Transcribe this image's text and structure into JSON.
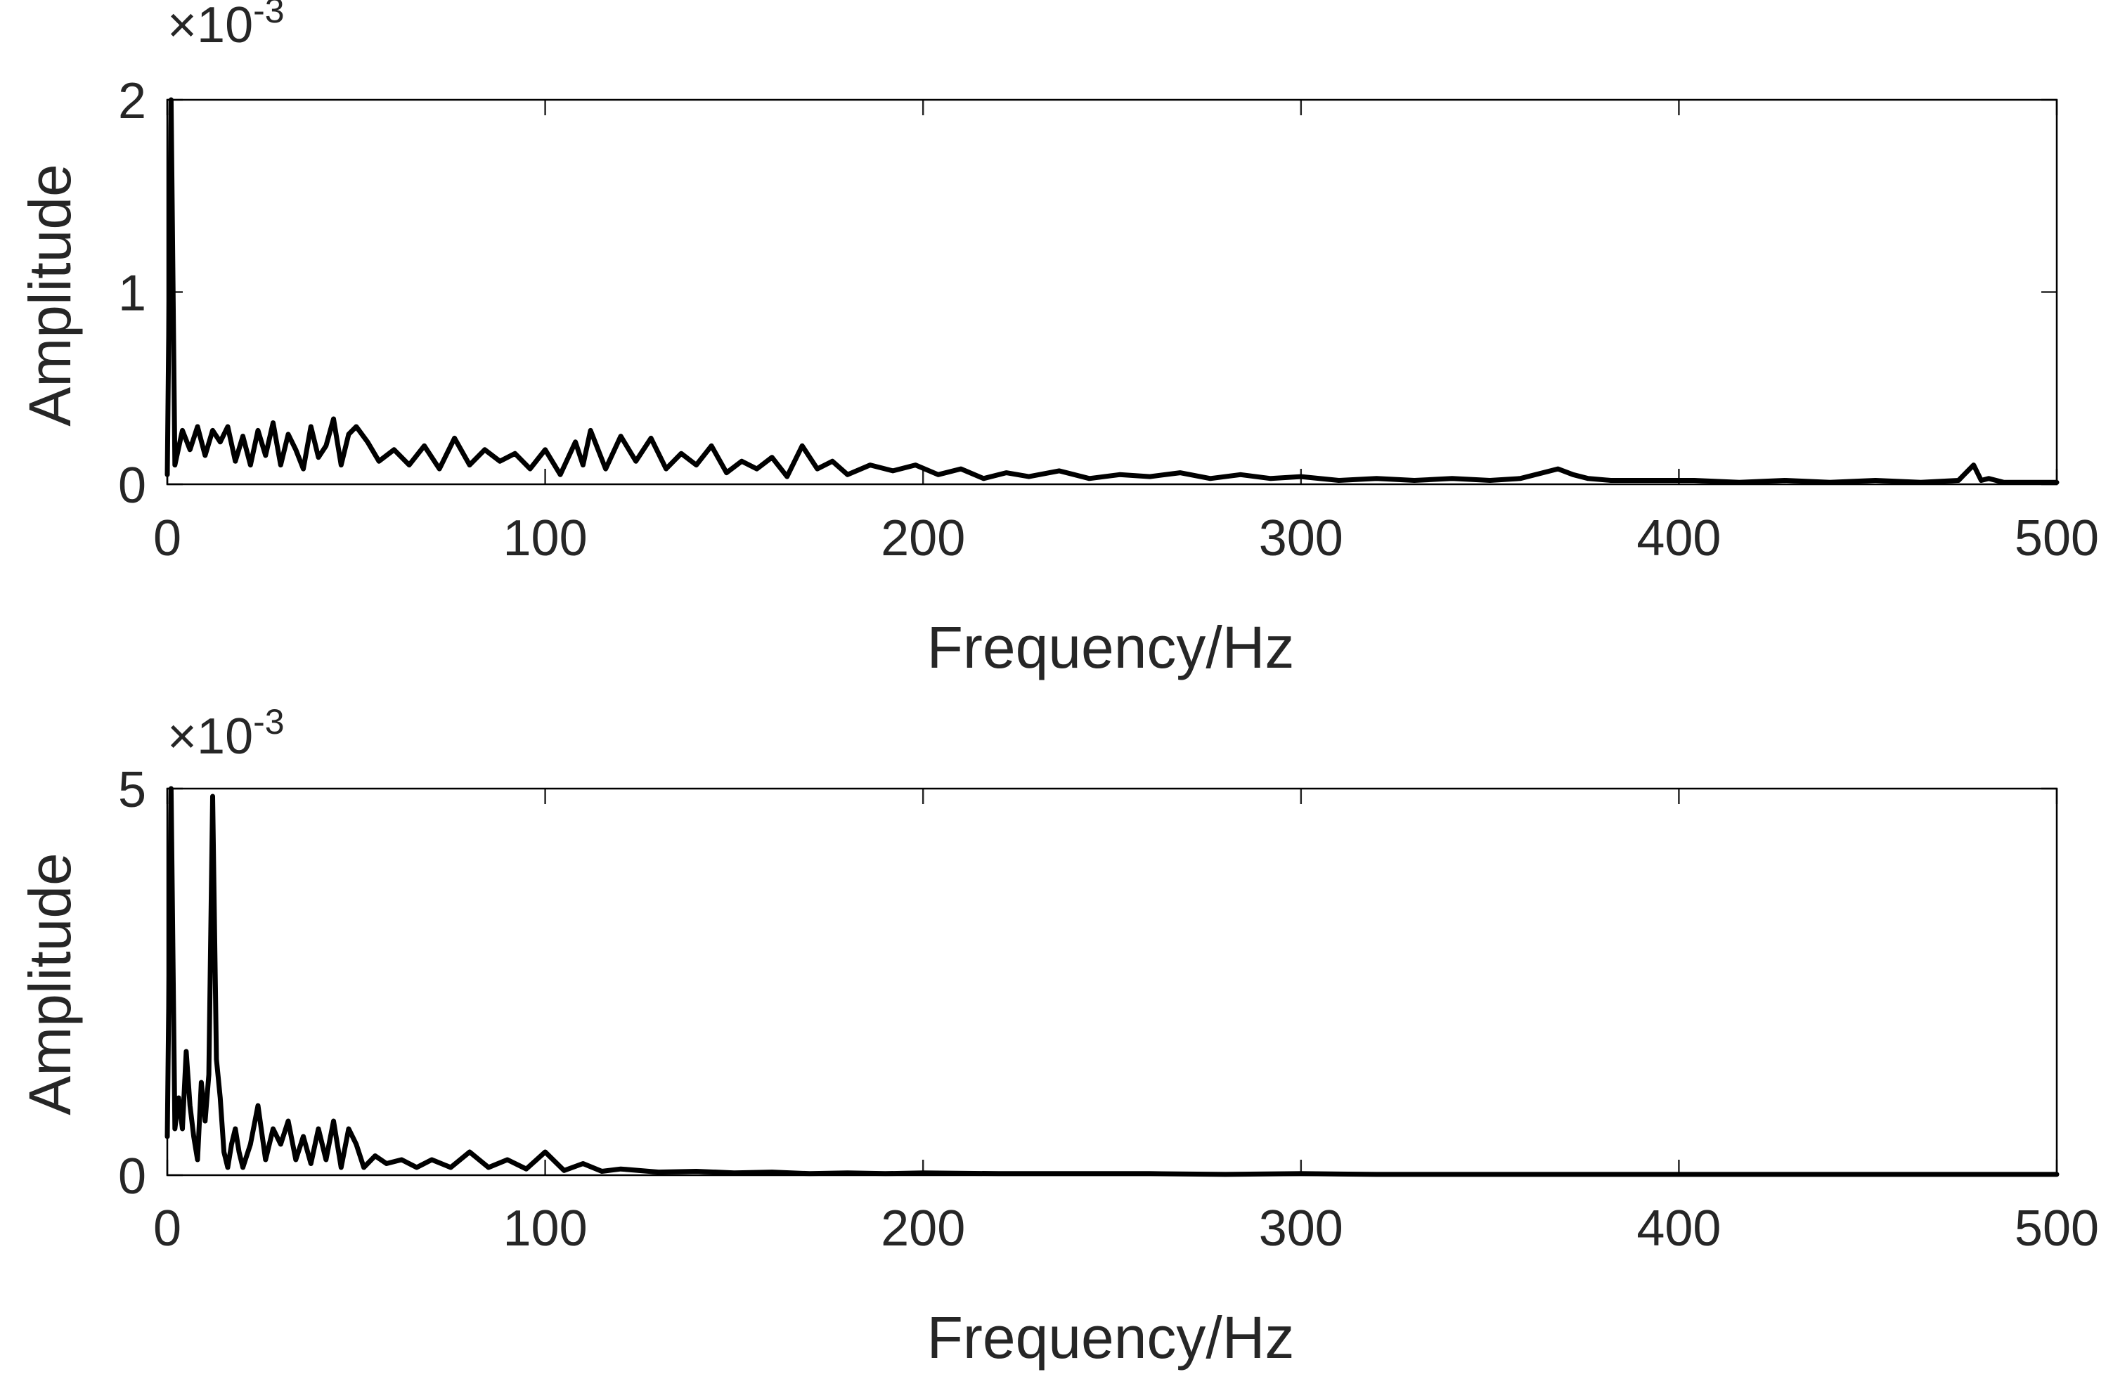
{
  "colors": {
    "line": "#000000",
    "axis": "#262626",
    "background": "#ffffff"
  },
  "chart_data": [
    {
      "type": "line",
      "title": "",
      "xlabel": "Frequency/Hz",
      "ylabel": "Amplitude",
      "y_exponent": "×10^-3",
      "y_exponent_base": "×10",
      "y_exponent_power": "-3",
      "xlim": [
        0,
        500
      ],
      "ylim": [
        0,
        2
      ],
      "xticks": [
        0,
        100,
        200,
        300,
        400,
        500
      ],
      "xtick_labels": [
        "0",
        "100",
        "200",
        "300",
        "400",
        "500"
      ],
      "yticks": [
        0,
        1,
        2
      ],
      "ytick_labels": [
        "0",
        "1",
        "2"
      ],
      "grid": false,
      "series": [
        {
          "x": [
            0,
            1,
            2,
            4,
            6,
            8,
            10,
            12,
            14,
            16,
            18,
            20,
            22,
            24,
            26,
            28,
            30,
            32,
            34,
            36,
            38,
            40,
            42,
            44,
            46,
            48,
            50,
            53,
            56,
            60,
            64,
            68,
            72,
            76,
            80,
            84,
            88,
            92,
            96,
            100,
            104,
            108,
            110,
            112,
            116,
            120,
            124,
            128,
            132,
            136,
            140,
            144,
            148,
            152,
            156,
            160,
            164,
            168,
            172,
            176,
            180,
            186,
            192,
            198,
            204,
            210,
            216,
            222,
            228,
            236,
            244,
            252,
            260,
            268,
            276,
            284,
            292,
            300,
            310,
            320,
            330,
            340,
            350,
            358,
            364,
            368,
            372,
            376,
            382,
            392,
            404,
            416,
            428,
            440,
            452,
            464,
            474,
            478,
            480,
            482,
            486,
            492,
            500
          ],
          "y": [
            0.05,
            2.0,
            0.1,
            0.28,
            0.18,
            0.3,
            0.15,
            0.28,
            0.22,
            0.3,
            0.12,
            0.25,
            0.1,
            0.28,
            0.15,
            0.32,
            0.1,
            0.26,
            0.18,
            0.08,
            0.3,
            0.14,
            0.2,
            0.34,
            0.1,
            0.26,
            0.3,
            0.22,
            0.12,
            0.18,
            0.1,
            0.2,
            0.08,
            0.24,
            0.1,
            0.18,
            0.12,
            0.16,
            0.08,
            0.18,
            0.05,
            0.22,
            0.1,
            0.28,
            0.08,
            0.25,
            0.12,
            0.24,
            0.08,
            0.16,
            0.1,
            0.2,
            0.06,
            0.12,
            0.08,
            0.14,
            0.04,
            0.2,
            0.08,
            0.12,
            0.05,
            0.1,
            0.07,
            0.1,
            0.05,
            0.08,
            0.03,
            0.06,
            0.04,
            0.07,
            0.03,
            0.05,
            0.04,
            0.06,
            0.03,
            0.05,
            0.03,
            0.04,
            0.02,
            0.03,
            0.02,
            0.03,
            0.02,
            0.03,
            0.06,
            0.08,
            0.05,
            0.03,
            0.02,
            0.02,
            0.02,
            0.01,
            0.02,
            0.01,
            0.02,
            0.01,
            0.02,
            0.1,
            0.02,
            0.03,
            0.01,
            0.01,
            0.01
          ]
        }
      ]
    },
    {
      "type": "line",
      "title": "",
      "xlabel": "Frequency/Hz",
      "ylabel": "Amplitude",
      "y_exponent": "×10^-3",
      "y_exponent_base": "×10",
      "y_exponent_power": "-3",
      "xlim": [
        0,
        500
      ],
      "ylim": [
        0,
        5
      ],
      "xticks": [
        0,
        100,
        200,
        300,
        400,
        500
      ],
      "xtick_labels": [
        "0",
        "100",
        "200",
        "300",
        "400",
        "500"
      ],
      "yticks": [
        0,
        5
      ],
      "ytick_labels": [
        "0",
        "5"
      ],
      "grid": false,
      "series": [
        {
          "x": [
            0,
            1,
            2,
            3,
            4,
            5,
            6,
            7,
            8,
            9,
            10,
            11,
            12,
            13,
            14,
            15,
            16,
            17,
            18,
            19,
            20,
            22,
            24,
            26,
            28,
            30,
            32,
            34,
            36,
            38,
            40,
            42,
            44,
            46,
            48,
            50,
            52,
            55,
            58,
            62,
            66,
            70,
            75,
            80,
            85,
            90,
            95,
            100,
            105,
            110,
            115,
            120,
            130,
            140,
            150,
            160,
            170,
            180,
            190,
            200,
            220,
            240,
            260,
            280,
            300,
            320,
            340,
            360,
            380,
            400,
            420,
            440,
            460,
            480,
            500
          ],
          "y": [
            0.5,
            5.0,
            0.6,
            1.0,
            0.6,
            1.6,
            0.9,
            0.5,
            0.2,
            1.2,
            0.7,
            1.3,
            4.9,
            1.5,
            1.0,
            0.3,
            0.1,
            0.4,
            0.6,
            0.3,
            0.1,
            0.4,
            0.9,
            0.2,
            0.6,
            0.4,
            0.7,
            0.2,
            0.5,
            0.15,
            0.6,
            0.2,
            0.7,
            0.1,
            0.6,
            0.4,
            0.1,
            0.25,
            0.15,
            0.2,
            0.1,
            0.2,
            0.1,
            0.3,
            0.1,
            0.2,
            0.08,
            0.3,
            0.06,
            0.15,
            0.05,
            0.08,
            0.04,
            0.05,
            0.03,
            0.04,
            0.02,
            0.03,
            0.02,
            0.03,
            0.02,
            0.02,
            0.02,
            0.01,
            0.02,
            0.01,
            0.01,
            0.01,
            0.01,
            0.01,
            0.01,
            0.01,
            0.01,
            0.01,
            0.01
          ]
        }
      ]
    }
  ]
}
